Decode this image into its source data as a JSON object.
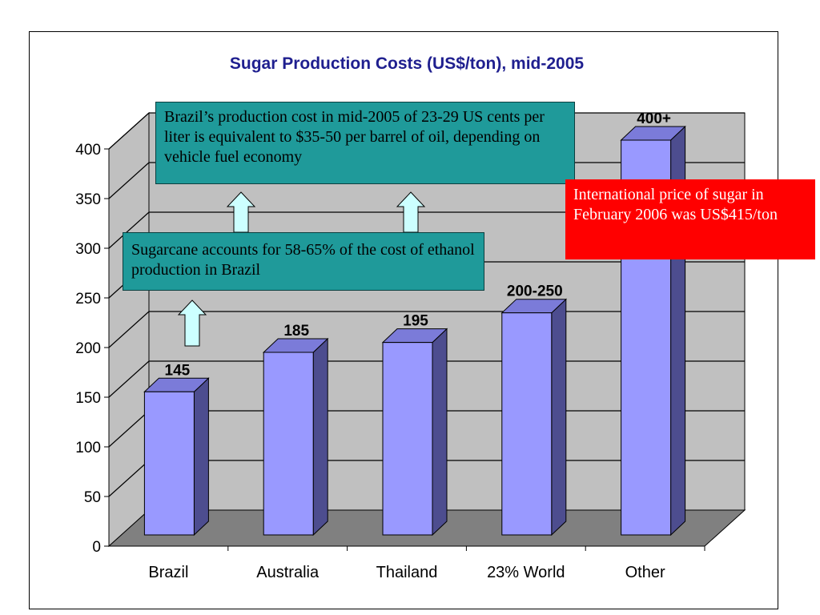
{
  "chart_data": {
    "type": "bar",
    "title": "Sugar Production Costs (US$/ton), mid-2005",
    "xlabel": "",
    "ylabel": "",
    "categories": [
      "Brazil",
      "Australia",
      "Thailand",
      "23% World",
      "Other"
    ],
    "values": [
      145,
      185,
      195,
      225,
      400
    ],
    "data_labels": [
      "145",
      "185",
      "195",
      "200-250",
      "400+"
    ],
    "ylim": [
      0,
      400
    ],
    "yticks": [
      0,
      50,
      100,
      150,
      200,
      250,
      300,
      350,
      400
    ],
    "grid": true,
    "legend": "none",
    "style": "3d-column"
  },
  "annotations": {
    "oil_equivalence": "Brazil’s production cost in mid-2005 of 23-29 US cents per liter is equivalent to $35-50 per barrel of oil, depending on vehicle fuel economy",
    "sugarcane_share": "Sugarcane accounts for 58-65% of the cost of ethanol production in Brazil",
    "international_price": "International price of sugar in February 2006 was US$415/ton"
  },
  "colors": {
    "title": "#1f1f8f",
    "bar_front": "#9999ff",
    "bar_side": "#4d4d8f",
    "bar_top": "#7b7bd9",
    "wall": "#c0c0c0",
    "floor": "#808080",
    "teal_note": "#1f9a9a",
    "red_note": "#ff0000",
    "arrow_fill": "#ccffff"
  }
}
